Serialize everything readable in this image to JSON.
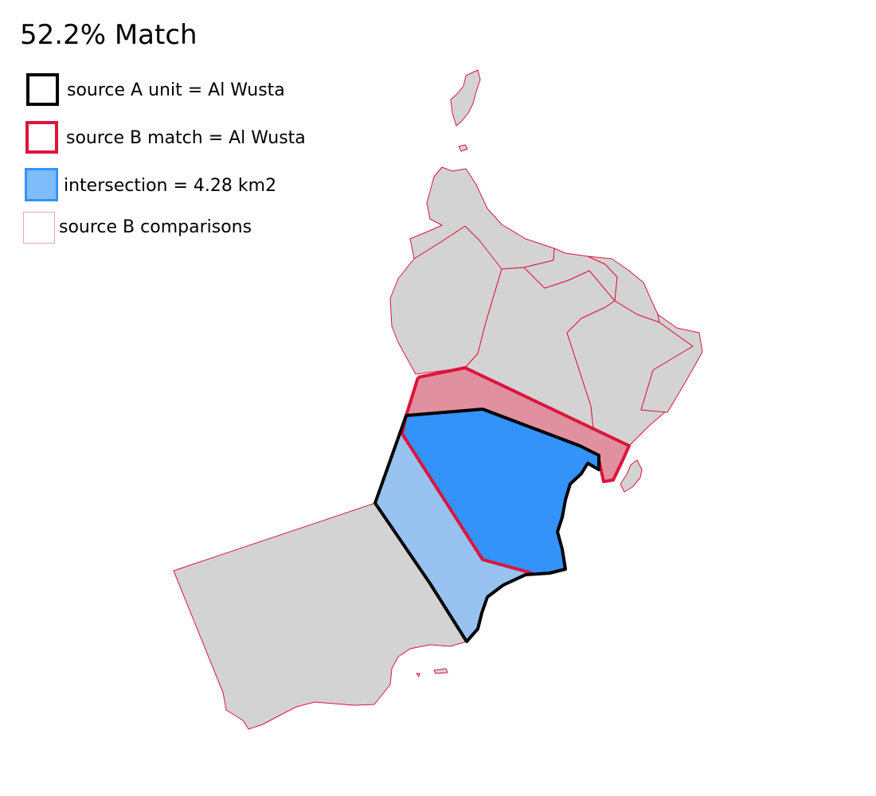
{
  "title": "52.2% Match",
  "legend": [
    {
      "label": "source A unit = Al Wusta",
      "swatch": "black-outline",
      "color": "#000000"
    },
    {
      "label": "source B match = Al Wusta",
      "swatch": "red-outline",
      "color": "#dc143c"
    },
    {
      "label": "intersection = 4.28 km2",
      "swatch": "blue-fill",
      "color": "#3393f9"
    },
    {
      "label": "source B comparisons",
      "swatch": "pink-outline",
      "color": "#e8a5bd"
    }
  ],
  "colors": {
    "land": "#d3d3d3",
    "comparison_border": "#dc143c",
    "source_a_outline": "#000000",
    "source_b_outline": "#dc143c",
    "source_b_only_fill": "#e0909f",
    "intersection_fill": "#3393f9",
    "source_a_only_fill": "#98c2ef"
  },
  "map": {
    "match_percent": 52.2,
    "source_a_unit": "Al Wusta",
    "source_b_match": "Al Wusta",
    "intersection_km2": 4.28
  }
}
